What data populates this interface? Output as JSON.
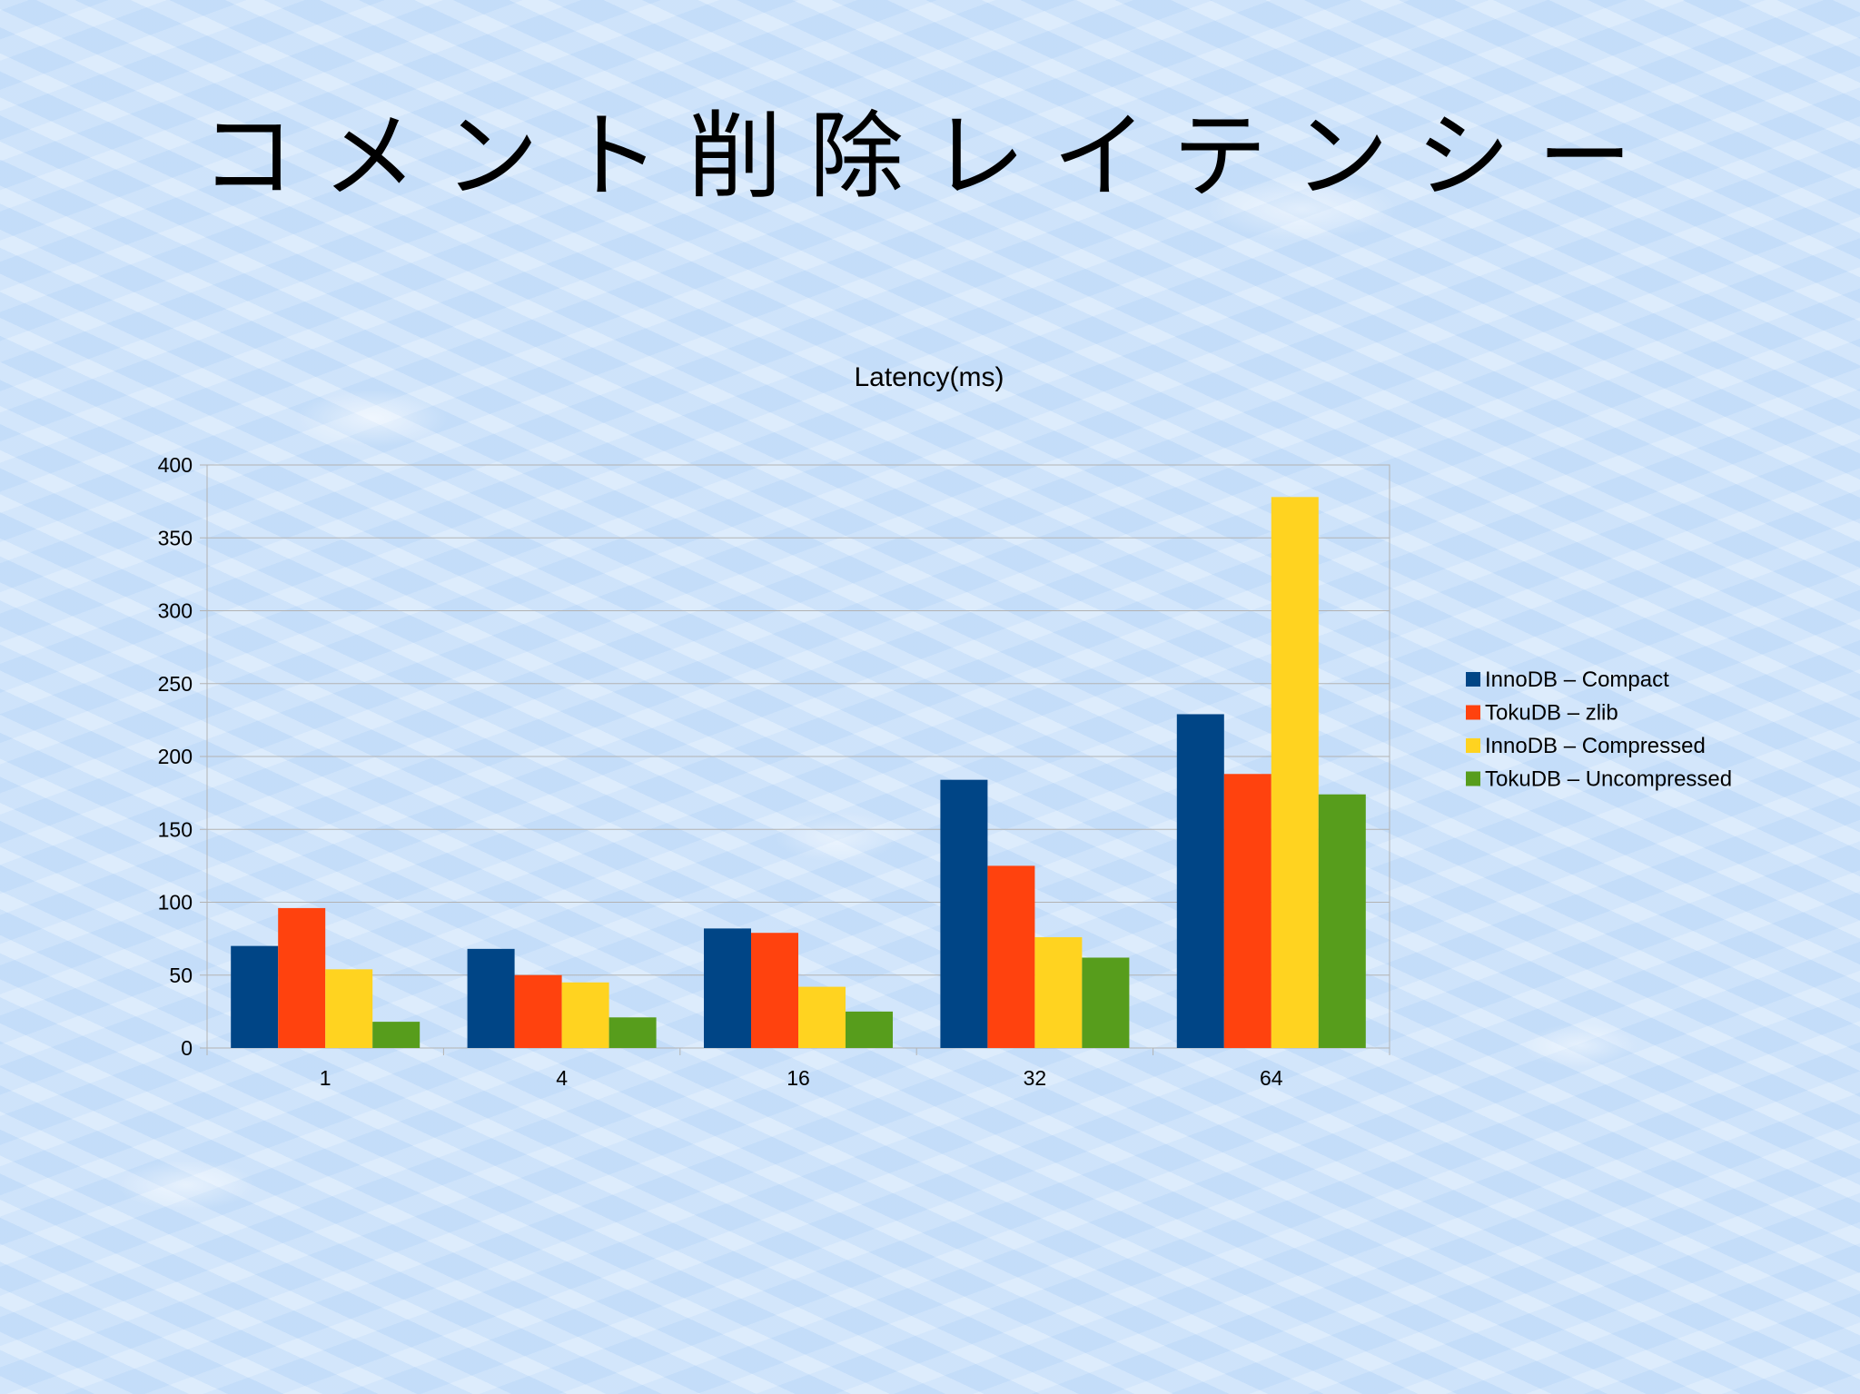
{
  "slide": {
    "title": "コメント削除レイテンシー"
  },
  "chart_data": {
    "type": "bar",
    "title": "Latency(ms)",
    "xlabel": "",
    "ylabel": "",
    "categories": [
      "1",
      "4",
      "16",
      "32",
      "64"
    ],
    "ylim": [
      0,
      400
    ],
    "yticks": [
      0,
      50,
      100,
      150,
      200,
      250,
      300,
      350,
      400
    ],
    "grid": true,
    "legend_position": "right",
    "series": [
      {
        "name": "InnoDB – Compact",
        "color": "#004586",
        "values": [
          70,
          68,
          82,
          184,
          229
        ]
      },
      {
        "name": "TokuDB – zlib",
        "color": "#ff420e",
        "values": [
          96,
          50,
          79,
          125,
          188
        ]
      },
      {
        "name": "InnoDB – Compressed",
        "color": "#ffd320",
        "values": [
          54,
          45,
          42,
          76,
          378
        ]
      },
      {
        "name": "TokuDB – Uncompressed",
        "color": "#579d1c",
        "values": [
          18,
          21,
          25,
          62,
          174
        ]
      }
    ]
  }
}
